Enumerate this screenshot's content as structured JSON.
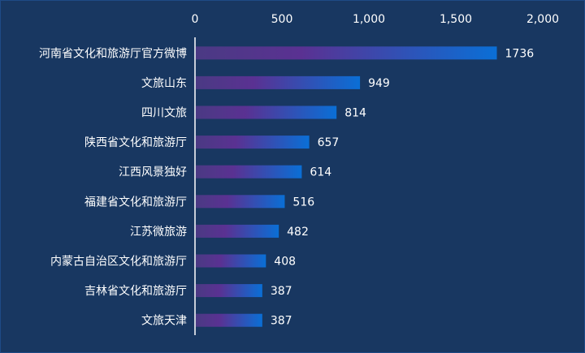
{
  "chart_data": {
    "type": "bar",
    "orientation": "horizontal",
    "categories": [
      "河南省文化和旅游厅官方微博",
      "文旅山东",
      "四川文旅",
      "陕西省文化和旅游厅",
      "江西风景独好",
      "福建省文化和旅游厅",
      "江苏微旅游",
      "内蒙古自治区文化和旅游厅",
      "吉林省文化和旅游厅",
      "文旅天津"
    ],
    "values": [
      1736,
      949,
      814,
      657,
      614,
      516,
      482,
      408,
      387,
      387
    ],
    "value_labels": [
      "1736",
      "949",
      "814",
      "657",
      "614",
      "516",
      "482",
      "408",
      "387",
      "387"
    ],
    "x_ticks": [
      0,
      500,
      1000,
      1500,
      2000
    ],
    "x_tick_labels": [
      "0",
      "500",
      "1,000",
      "1,500",
      "2,000"
    ],
    "xlim": [
      0,
      2000
    ],
    "x_axis_position": "top",
    "grid": false,
    "title": "",
    "xlabel": "",
    "ylabel": "",
    "colors": {
      "background": "#183761",
      "bar_start": "#5b3a8f",
      "bar_end": "#0a6fd6",
      "text": "#ffffff",
      "axis": "#ffffff"
    }
  }
}
